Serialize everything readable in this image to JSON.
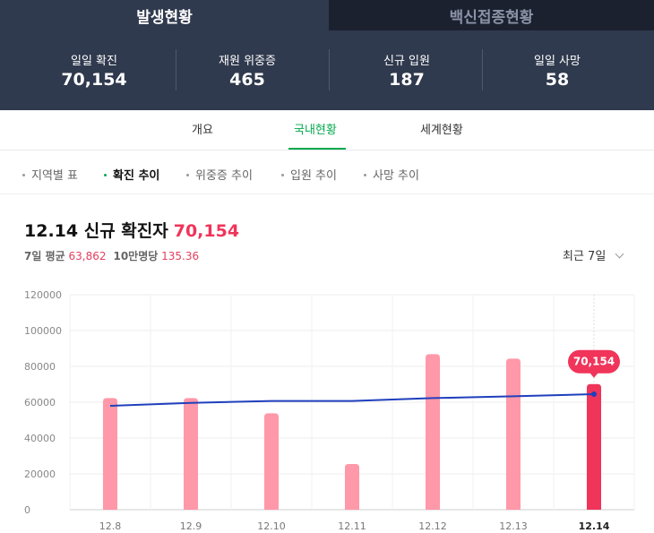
{
  "top_tabs": [
    {
      "label": "발생현황",
      "active": true
    },
    {
      "label": "백신접종현황",
      "active": false
    }
  ],
  "stats": [
    {
      "label": "일일 확진",
      "value": "70,154"
    },
    {
      "label": "재원 위중증",
      "value": "465"
    },
    {
      "label": "신규 입원",
      "value": "187"
    },
    {
      "label": "일일 사망",
      "value": "58"
    }
  ],
  "sub_tabs": [
    {
      "label": "개요",
      "active": false
    },
    {
      "label": "국내현황",
      "active": true
    },
    {
      "label": "세계현황",
      "active": false
    }
  ],
  "filters": [
    {
      "label": "지역별 표",
      "active": false
    },
    {
      "label": "확진 추이",
      "active": true
    },
    {
      "label": "위중증 추이",
      "active": false
    },
    {
      "label": "입원 추이",
      "active": false
    },
    {
      "label": "사망 추이",
      "active": false
    }
  ],
  "headline": {
    "title": "12.14 신규 확진자",
    "value": "70,154"
  },
  "subline": {
    "avg_label": "7일 평균",
    "avg_value": "63,862",
    "per_label": "10만명당",
    "per_value": "135.36"
  },
  "range_select": {
    "label": "최근 7일"
  },
  "colors": {
    "header_bg": "#303a4e",
    "accent_green": "#03a94e",
    "highlight_red": "#f0345a",
    "bar_pink": "#ff98a8",
    "line_blue": "#1f3fbd"
  },
  "chart_data": {
    "type": "bar",
    "categories": [
      "12.8",
      "12.9",
      "12.10",
      "12.11",
      "12.12",
      "12.13",
      "12.14"
    ],
    "series": [
      {
        "type": "bar",
        "values": [
          62300,
          62300,
          53800,
          25500,
          86800,
          84300,
          70154
        ]
      },
      {
        "type": "line",
        "values": [
          58000,
          59600,
          60700,
          60700,
          62300,
          63300,
          64500
        ]
      }
    ],
    "y_ticks": [
      "0",
      "20000",
      "40000",
      "60000",
      "80000",
      "100000",
      "120000"
    ],
    "ylim": [
      0,
      120000
    ],
    "highlight": {
      "index": 6,
      "label": "70,154"
    },
    "grid": true
  }
}
